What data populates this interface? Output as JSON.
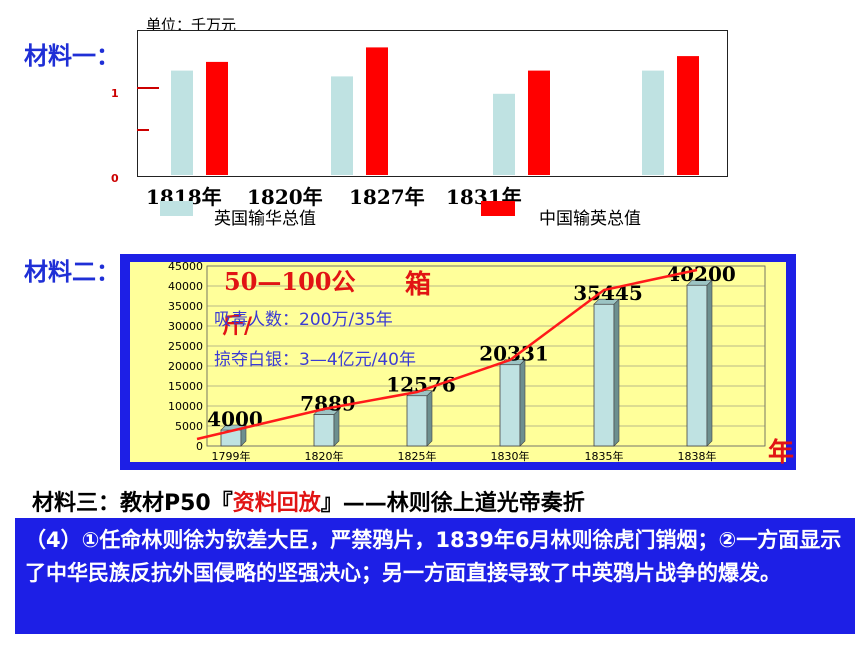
{
  "material1": {
    "label": "材料一：",
    "unit": "单位：千万元",
    "y_ticks": [
      "1",
      "0"
    ],
    "years": [
      "1818年",
      "1820年",
      "1827年",
      "1831年"
    ],
    "legend": {
      "britain": "英国输华总值",
      "china": "中国输英总值"
    }
  },
  "material2": {
    "label": "材料二：",
    "year_axis_label": "年",
    "overlay": {
      "line1": "50—100公",
      "line1b": "箱",
      "line2": "斤/",
      "line3": "吸毒人数：200万/35年",
      "line4": "掠夺白银：3—4亿元/40年"
    }
  },
  "material3": {
    "prefix": "材料三：教材P50『",
    "highlight": "资料回放",
    "suffix": "』——林则徐上道光帝奏折"
  },
  "answer": {
    "text": "（4）①任命林则徐为钦差大臣，严禁鸦片，1839年6月林则徐虎门销烟；②一方面显示了中华民族反抗外国侵略的坚强决心；另一方面直接导致了中英鸦片战争的爆发。"
  },
  "colors": {
    "britain": "#bfe2e2",
    "china": "#ff0000",
    "blue": "#1d1fe6",
    "chart2_bg": "#ffff9a"
  },
  "chart_data": [
    {
      "type": "bar",
      "categories": [
        "1818年",
        "1820年",
        "1827年",
        "1831年"
      ],
      "series": [
        {
          "name": "英国输华总值",
          "values": [
            1.8,
            1.7,
            1.4,
            1.8
          ]
        },
        {
          "name": "中国输英总值",
          "values": [
            1.95,
            2.2,
            1.8,
            2.05
          ]
        }
      ],
      "title": "",
      "unit": "单位：千万元",
      "ylim": [
        0,
        2.5
      ]
    },
    {
      "type": "bar",
      "categories": [
        "1799年",
        "1820年",
        "1825年",
        "1830年",
        "1835年",
        "1838年"
      ],
      "values": [
        4000,
        7889,
        12576,
        20331,
        35445,
        40200
      ],
      "data_labels": [
        "4000",
        "7889",
        "12576",
        "20331",
        "35445",
        "40200"
      ],
      "y_ticks": [
        0,
        5000,
        10000,
        15000,
        20000,
        25000,
        30000,
        35000,
        40000,
        45000
      ],
      "ylim": [
        0,
        45000
      ],
      "trend_line": true,
      "xlabel": "年",
      "ylabel": ""
    }
  ]
}
